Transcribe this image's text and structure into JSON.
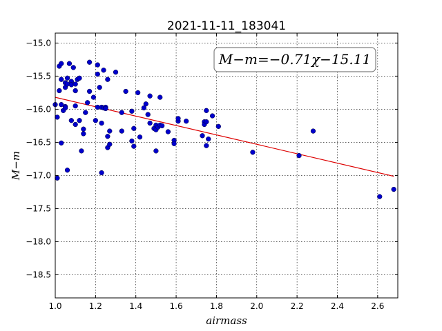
{
  "chart_data": {
    "type": "scatter",
    "title": "2021-11-11_183041",
    "xlabel": "airmass",
    "ylabel": "M−m",
    "annotation": "M−m=−0.71χ−15.11",
    "xlim": [
      1.0,
      2.7
    ],
    "ylim": [
      -18.85,
      -14.85
    ],
    "x_ticks": [
      1.0,
      1.2,
      1.4,
      1.6,
      1.8,
      2.0,
      2.2,
      2.4,
      2.6
    ],
    "x_tick_labels": [
      "1.0",
      "1.2",
      "1.4",
      "1.6",
      "1.8",
      "2.0",
      "2.2",
      "2.4",
      "2.6"
    ],
    "y_ticks": [
      -15.0,
      -15.5,
      -16.0,
      -16.5,
      -17.0,
      -17.5,
      -18.0,
      -18.5
    ],
    "y_tick_labels": [
      "−15.0",
      "−15.5",
      "−16.0",
      "−16.5",
      "−17.0",
      "−17.5",
      "−18.0",
      "−18.5"
    ],
    "grid": true,
    "colors": {
      "points": "#0000cc",
      "fit_line": "#dd0000"
    },
    "fit_line": {
      "slope": -0.71,
      "intercept": -15.11,
      "x": [
        1.0,
        2.68
      ]
    },
    "points": [
      {
        "x": 1.0,
        "y": -15.93
      },
      {
        "x": 1.01,
        "y": -16.12
      },
      {
        "x": 1.01,
        "y": -17.04
      },
      {
        "x": 1.02,
        "y": -15.35
      },
      {
        "x": 1.02,
        "y": -15.72
      },
      {
        "x": 1.03,
        "y": -15.31
      },
      {
        "x": 1.03,
        "y": -15.55
      },
      {
        "x": 1.03,
        "y": -15.93
      },
      {
        "x": 1.03,
        "y": -16.51
      },
      {
        "x": 1.04,
        "y": -16.02
      },
      {
        "x": 1.05,
        "y": -15.6
      },
      {
        "x": 1.05,
        "y": -15.67
      },
      {
        "x": 1.05,
        "y": -15.96
      },
      {
        "x": 1.05,
        "y": -15.98
      },
      {
        "x": 1.06,
        "y": -15.53
      },
      {
        "x": 1.06,
        "y": -15.62
      },
      {
        "x": 1.06,
        "y": -16.92
      },
      {
        "x": 1.07,
        "y": -15.31
      },
      {
        "x": 1.08,
        "y": -15.58
      },
      {
        "x": 1.08,
        "y": -15.63
      },
      {
        "x": 1.08,
        "y": -16.17
      },
      {
        "x": 1.09,
        "y": -15.37
      },
      {
        "x": 1.1,
        "y": -15.62
      },
      {
        "x": 1.1,
        "y": -15.72
      },
      {
        "x": 1.1,
        "y": -15.95
      },
      {
        "x": 1.1,
        "y": -16.23
      },
      {
        "x": 1.11,
        "y": -15.55
      },
      {
        "x": 1.12,
        "y": -15.53
      },
      {
        "x": 1.12,
        "y": -16.17
      },
      {
        "x": 1.13,
        "y": -16.63
      },
      {
        "x": 1.14,
        "y": -16.3
      },
      {
        "x": 1.14,
        "y": -16.37
      },
      {
        "x": 1.15,
        "y": -16.05
      },
      {
        "x": 1.16,
        "y": -15.9
      },
      {
        "x": 1.17,
        "y": -15.29
      },
      {
        "x": 1.17,
        "y": -15.73
      },
      {
        "x": 1.19,
        "y": -15.82
      },
      {
        "x": 1.2,
        "y": -16.17
      },
      {
        "x": 1.21,
        "y": -15.33
      },
      {
        "x": 1.21,
        "y": -15.47
      },
      {
        "x": 1.21,
        "y": -15.97
      },
      {
        "x": 1.22,
        "y": -15.67
      },
      {
        "x": 1.23,
        "y": -15.97
      },
      {
        "x": 1.23,
        "y": -16.21
      },
      {
        "x": 1.23,
        "y": -16.96
      },
      {
        "x": 1.24,
        "y": -15.41
      },
      {
        "x": 1.24,
        "y": -15.98
      },
      {
        "x": 1.25,
        "y": -15.97
      },
      {
        "x": 1.25,
        "y": -15.99
      },
      {
        "x": 1.26,
        "y": -15.55
      },
      {
        "x": 1.26,
        "y": -16.41
      },
      {
        "x": 1.26,
        "y": -16.58
      },
      {
        "x": 1.27,
        "y": -16.33
      },
      {
        "x": 1.27,
        "y": -16.53
      },
      {
        "x": 1.3,
        "y": -15.44
      },
      {
        "x": 1.33,
        "y": -16.05
      },
      {
        "x": 1.33,
        "y": -16.33
      },
      {
        "x": 1.35,
        "y": -15.73
      },
      {
        "x": 1.38,
        "y": -16.03
      },
      {
        "x": 1.38,
        "y": -16.48
      },
      {
        "x": 1.39,
        "y": -16.56
      },
      {
        "x": 1.39,
        "y": -16.29
      },
      {
        "x": 1.41,
        "y": -15.75
      },
      {
        "x": 1.42,
        "y": -16.42
      },
      {
        "x": 1.44,
        "y": -15.98
      },
      {
        "x": 1.45,
        "y": -15.92
      },
      {
        "x": 1.46,
        "y": -16.08
      },
      {
        "x": 1.47,
        "y": -15.8
      },
      {
        "x": 1.47,
        "y": -16.21
      },
      {
        "x": 1.49,
        "y": -16.29
      },
      {
        "x": 1.5,
        "y": -16.24
      },
      {
        "x": 1.5,
        "y": -16.31
      },
      {
        "x": 1.5,
        "y": -16.63
      },
      {
        "x": 1.51,
        "y": -16.27
      },
      {
        "x": 1.52,
        "y": -16.24
      },
      {
        "x": 1.52,
        "y": -15.82
      },
      {
        "x": 1.53,
        "y": -16.25
      },
      {
        "x": 1.56,
        "y": -16.34
      },
      {
        "x": 1.59,
        "y": -16.47
      },
      {
        "x": 1.59,
        "y": -16.52
      },
      {
        "x": 1.61,
        "y": -16.18
      },
      {
        "x": 1.61,
        "y": -16.14
      },
      {
        "x": 1.65,
        "y": -16.18
      },
      {
        "x": 1.73,
        "y": -16.4
      },
      {
        "x": 1.74,
        "y": -16.19
      },
      {
        "x": 1.74,
        "y": -16.23
      },
      {
        "x": 1.75,
        "y": -16.02
      },
      {
        "x": 1.75,
        "y": -16.19
      },
      {
        "x": 1.75,
        "y": -16.55
      },
      {
        "x": 1.76,
        "y": -16.45
      },
      {
        "x": 1.78,
        "y": -16.1
      },
      {
        "x": 1.81,
        "y": -16.26
      },
      {
        "x": 1.98,
        "y": -16.65
      },
      {
        "x": 2.21,
        "y": -16.7
      },
      {
        "x": 2.28,
        "y": -16.33
      },
      {
        "x": 2.61,
        "y": -17.32
      },
      {
        "x": 2.68,
        "y": -17.21
      }
    ]
  }
}
